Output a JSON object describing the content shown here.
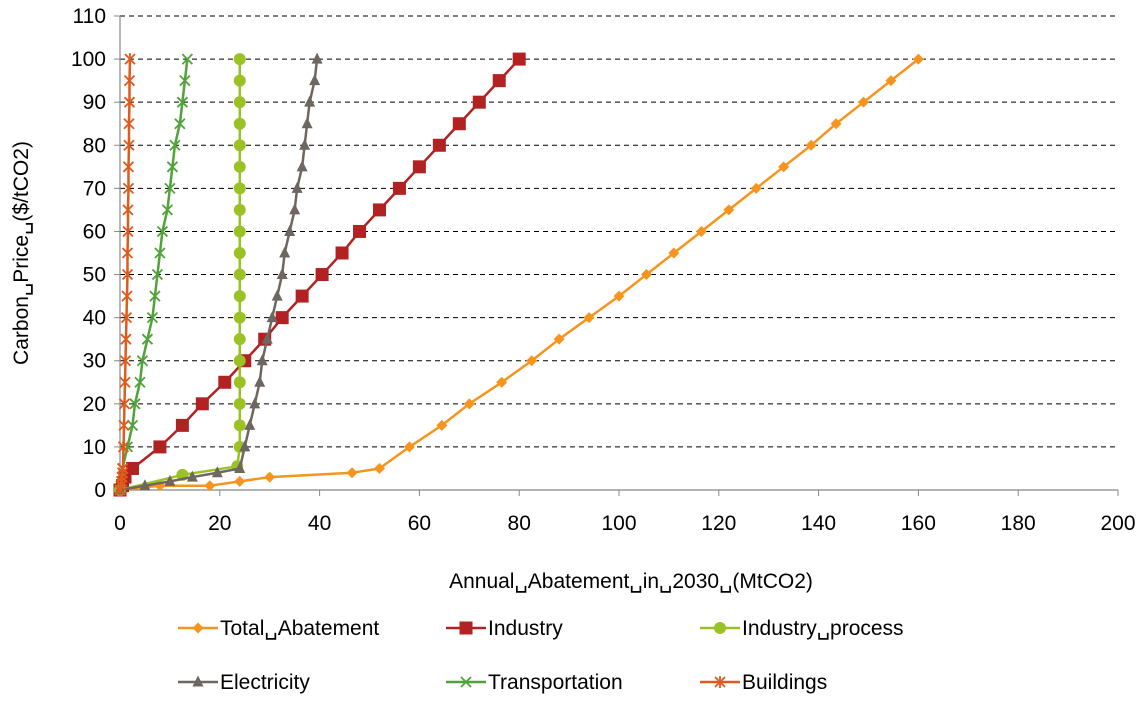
{
  "chart_data": {
    "type": "line",
    "xlabel": "Annual␣Abatement␣in␣2030␣(MtCO2)",
    "ylabel": "Carbon␣Price␣($/tCO2)",
    "xlim": [
      0,
      200
    ],
    "ylim": [
      0,
      110
    ],
    "x_ticks": [
      "0",
      "20",
      "40",
      "60",
      "80",
      "100",
      "120",
      "140",
      "160",
      "180",
      "200"
    ],
    "y_ticks": [
      "0",
      "10",
      "20",
      "30",
      "40",
      "50",
      "60",
      "70",
      "80",
      "90",
      "100",
      "110"
    ],
    "grid": "horizontal-dashed",
    "legend_position": "bottom",
    "series": [
      {
        "name": "Total␣Abatement",
        "color": "#F7941D",
        "marker": "diamond",
        "points": [
          [
            0,
            0
          ],
          [
            8,
            1
          ],
          [
            18,
            1
          ],
          [
            24,
            2
          ],
          [
            30,
            3
          ],
          [
            46.5,
            4
          ],
          [
            52,
            5
          ],
          [
            58,
            10
          ],
          [
            64.5,
            15
          ],
          [
            70,
            20
          ],
          [
            76.5,
            25
          ],
          [
            82.5,
            30
          ],
          [
            88,
            35
          ],
          [
            94,
            40
          ],
          [
            100,
            45
          ],
          [
            105.5,
            50
          ],
          [
            111,
            55
          ],
          [
            116.5,
            60
          ],
          [
            122,
            65
          ],
          [
            127.5,
            70
          ],
          [
            133,
            75
          ],
          [
            138.5,
            80
          ],
          [
            143.5,
            85
          ],
          [
            149,
            90
          ],
          [
            154.5,
            95
          ],
          [
            160,
            100
          ]
        ]
      },
      {
        "name": "Industry",
        "color": "#B22222",
        "marker": "square",
        "points": [
          [
            0,
            0
          ],
          [
            0.5,
            1
          ],
          [
            1,
            3
          ],
          [
            2.5,
            5
          ],
          [
            8,
            10
          ],
          [
            12.5,
            15
          ],
          [
            16.5,
            20
          ],
          [
            21,
            25
          ],
          [
            25,
            30
          ],
          [
            29,
            35
          ],
          [
            32.5,
            40
          ],
          [
            36.5,
            45
          ],
          [
            40.5,
            50
          ],
          [
            44.5,
            55
          ],
          [
            48,
            60
          ],
          [
            52,
            65
          ],
          [
            56,
            70
          ],
          [
            60,
            75
          ],
          [
            64,
            80
          ],
          [
            68,
            85
          ],
          [
            72,
            90
          ],
          [
            76,
            95
          ],
          [
            80,
            100
          ]
        ]
      },
      {
        "name": "Industry␣process",
        "color": "#9BC225",
        "marker": "circle",
        "points": [
          [
            0,
            0
          ],
          [
            12.5,
            3.5
          ],
          [
            23.5,
            5.5
          ],
          [
            24,
            10
          ],
          [
            24,
            15
          ],
          [
            24,
            20
          ],
          [
            24,
            25
          ],
          [
            24,
            30
          ],
          [
            24,
            35
          ],
          [
            24,
            40
          ],
          [
            24,
            45
          ],
          [
            24,
            50
          ],
          [
            24,
            55
          ],
          [
            24,
            60
          ],
          [
            24,
            65
          ],
          [
            24,
            70
          ],
          [
            24,
            75
          ],
          [
            24,
            80
          ],
          [
            24,
            85
          ],
          [
            24,
            90
          ],
          [
            24,
            95
          ],
          [
            24,
            100
          ]
        ]
      },
      {
        "name": "Electricity",
        "color": "#6D6760",
        "marker": "triangle",
        "points": [
          [
            0,
            0
          ],
          [
            5,
            1
          ],
          [
            10,
            2
          ],
          [
            14.5,
            3
          ],
          [
            19.5,
            4
          ],
          [
            24,
            5
          ],
          [
            25,
            10
          ],
          [
            26,
            15
          ],
          [
            27,
            20
          ],
          [
            28,
            25
          ],
          [
            28.5,
            30
          ],
          [
            29.5,
            35
          ],
          [
            30.5,
            40
          ],
          [
            31.5,
            45
          ],
          [
            32.5,
            50
          ],
          [
            33,
            55
          ],
          [
            34,
            60
          ],
          [
            35,
            65
          ],
          [
            35.5,
            70
          ],
          [
            36.5,
            75
          ],
          [
            37,
            80
          ],
          [
            37.5,
            85
          ],
          [
            38,
            90
          ],
          [
            39,
            95
          ],
          [
            39.5,
            100
          ]
        ]
      },
      {
        "name": "Transportation",
        "color": "#4FA33A",
        "marker": "x",
        "points": [
          [
            0,
            0
          ],
          [
            0.5,
            5
          ],
          [
            1.5,
            10
          ],
          [
            2.5,
            15
          ],
          [
            3,
            20
          ],
          [
            4,
            25
          ],
          [
            4.5,
            30
          ],
          [
            5.5,
            35
          ],
          [
            6.5,
            40
          ],
          [
            7,
            45
          ],
          [
            7.5,
            50
          ],
          [
            8,
            55
          ],
          [
            8.5,
            60
          ],
          [
            9.5,
            65
          ],
          [
            10,
            70
          ],
          [
            10.5,
            75
          ],
          [
            11,
            80
          ],
          [
            12,
            85
          ],
          [
            12.5,
            90
          ],
          [
            13,
            95
          ],
          [
            13.5,
            100
          ]
        ]
      },
      {
        "name": "Buildings",
        "color": "#E05A1C",
        "marker": "star",
        "points": [
          [
            0,
            0
          ],
          [
            0.2,
            1
          ],
          [
            0.3,
            2
          ],
          [
            0.4,
            3
          ],
          [
            0.5,
            4
          ],
          [
            0.6,
            5
          ],
          [
            0.7,
            10
          ],
          [
            0.8,
            15
          ],
          [
            0.9,
            20
          ],
          [
            1,
            25
          ],
          [
            1.1,
            30
          ],
          [
            1.2,
            35
          ],
          [
            1.3,
            40
          ],
          [
            1.4,
            45
          ],
          [
            1.5,
            50
          ],
          [
            1.5,
            55
          ],
          [
            1.6,
            60
          ],
          [
            1.6,
            65
          ],
          [
            1.7,
            70
          ],
          [
            1.7,
            75
          ],
          [
            1.8,
            80
          ],
          [
            1.8,
            85
          ],
          [
            1.9,
            90
          ],
          [
            1.9,
            95
          ],
          [
            2,
            100
          ]
        ]
      }
    ]
  }
}
